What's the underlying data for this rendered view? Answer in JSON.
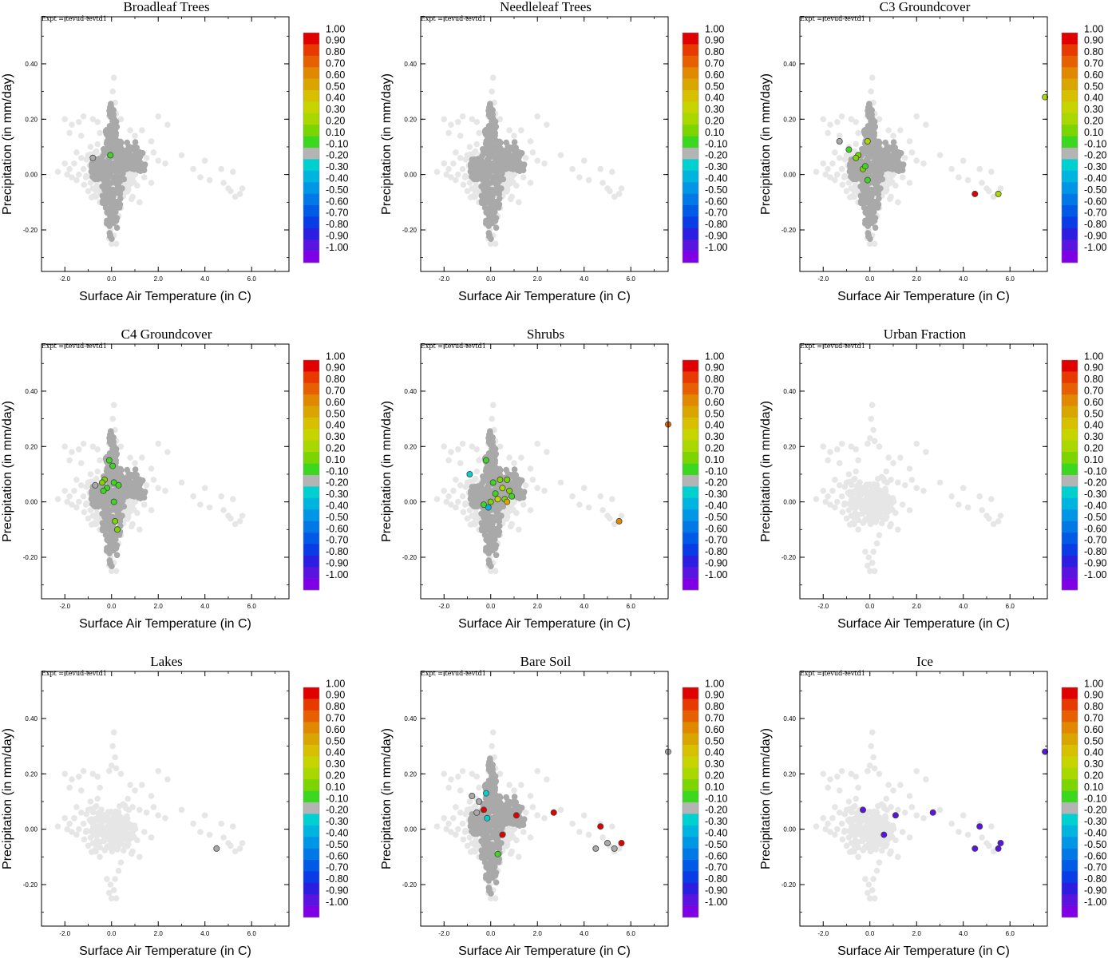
{
  "common": {
    "expt_label": "Expt = tevud-tevtd1",
    "xlabel": "Surface Air Temperature (in C)",
    "ylabel": "Precipitation (in mm/day)",
    "xlim": [
      -3.0,
      7.6
    ],
    "ylim": [
      -0.35,
      0.57
    ],
    "xticks": [
      "-2.0",
      "0.0",
      "2.0",
      "4.0",
      "6.0"
    ],
    "yticks": [
      "-0.20",
      "0.00",
      "0.20",
      "0.40"
    ],
    "colorbar": {
      "labels": [
        "1.00",
        "0.90",
        "0.80",
        "0.70",
        "0.60",
        "0.50",
        "0.40",
        "0.30",
        "0.20",
        "0.10",
        "-0.10",
        "-0.20",
        "-0.30",
        "-0.40",
        "-0.50",
        "-0.60",
        "-0.70",
        "-0.80",
        "-0.90",
        "-1.00"
      ],
      "colors": [
        "#e00000",
        "#e63a00",
        "#e65f00",
        "#e08800",
        "#d9a600",
        "#d6c000",
        "#c6d400",
        "#a8d800",
        "#7cd400",
        "#3cd820",
        "#b4b4b4",
        "#00d0d0",
        "#00b4e0",
        "#0096e6",
        "#0078e6",
        "#005ae6",
        "#0a3ce6",
        "#2c1ee0",
        "#5a14e0",
        "#8000e6"
      ]
    },
    "base_colors": {
      "light": "#e6e6e6",
      "dark": "#a9a9a9"
    },
    "background_points": [
      [
        -2.0,
        0.2
      ],
      [
        -1.7,
        0.18
      ],
      [
        -1.4,
        0.19
      ],
      [
        -1.2,
        0.21
      ],
      [
        -0.8,
        0.2
      ],
      [
        -0.6,
        0.19
      ],
      [
        -1.8,
        0.15
      ],
      [
        -1.3,
        0.14
      ],
      [
        -0.5,
        0.15
      ],
      [
        -2.3,
        0.01
      ],
      [
        -2.0,
        0.04
      ],
      [
        -1.8,
        0.02
      ],
      [
        -1.6,
        0.04
      ],
      [
        -1.5,
        0.08
      ],
      [
        -1.3,
        0.06
      ],
      [
        -1.2,
        0.02
      ],
      [
        -1.0,
        0.07
      ],
      [
        -0.9,
        0.1
      ],
      [
        -0.8,
        0.03
      ],
      [
        -0.7,
        0.08
      ],
      [
        -0.6,
        0.11
      ],
      [
        -1.9,
        0.0
      ],
      [
        -1.7,
        -0.01
      ],
      [
        -1.5,
        -0.02
      ],
      [
        -1.4,
        0.0
      ],
      [
        -1.1,
        -0.01
      ],
      [
        -0.9,
        -0.03
      ],
      [
        -0.8,
        -0.05
      ],
      [
        -0.6,
        -0.02
      ],
      [
        -0.7,
        -0.08
      ],
      [
        -0.5,
        -0.1
      ],
      [
        -1.0,
        -0.06
      ],
      [
        -0.3,
        0.05
      ],
      [
        0.3,
        0.06
      ],
      [
        0.5,
        0.09
      ],
      [
        0.7,
        0.11
      ],
      [
        0.9,
        0.08
      ],
      [
        1.2,
        0.07
      ],
      [
        1.5,
        0.06
      ],
      [
        1.8,
        0.08
      ],
      [
        2.0,
        0.05
      ],
      [
        2.3,
        0.04
      ],
      [
        1.0,
        0.14
      ],
      [
        1.3,
        0.16
      ],
      [
        1.7,
        0.12
      ],
      [
        2.0,
        0.21
      ],
      [
        2.4,
        0.18
      ],
      [
        0.8,
        0.16
      ],
      [
        0.4,
        0.2
      ],
      [
        0.5,
        0.0
      ],
      [
        0.8,
        -0.02
      ],
      [
        1.1,
        -0.04
      ],
      [
        1.4,
        -0.01
      ],
      [
        1.7,
        -0.03
      ],
      [
        0.6,
        -0.06
      ],
      [
        0.9,
        -0.08
      ],
      [
        1.2,
        -0.1
      ],
      [
        0.4,
        -0.12
      ],
      [
        0.3,
        -0.15
      ],
      [
        3.0,
        0.07
      ],
      [
        3.5,
        0.02
      ],
      [
        3.8,
        -0.01
      ],
      [
        4.0,
        0.05
      ],
      [
        4.2,
        -0.02
      ],
      [
        4.8,
        -0.03
      ],
      [
        5.1,
        -0.06
      ],
      [
        5.3,
        -0.08
      ],
      [
        5.5,
        -0.07
      ],
      [
        5.6,
        -0.05
      ],
      [
        5.0,
        -0.05
      ],
      [
        4.7,
        0.02
      ],
      [
        5.2,
        0.01
      ],
      [
        0.1,
        0.35
      ],
      [
        0.05,
        0.3
      ],
      [
        0.15,
        0.26
      ],
      [
        0.0,
        0.23
      ],
      [
        -0.1,
        0.21
      ],
      [
        0.2,
        0.22
      ],
      [
        0.0,
        -0.25
      ],
      [
        0.1,
        -0.22
      ],
      [
        -0.1,
        -0.23
      ],
      [
        0.15,
        -0.18
      ],
      [
        -0.05,
        -0.2
      ],
      [
        0.2,
        -0.25
      ],
      [
        -0.2,
        -0.18
      ]
    ],
    "core_columns": [
      {
        "x": -0.3,
        "y0": -0.12,
        "y1": 0.1
      },
      {
        "x": -0.15,
        "y0": -0.18,
        "y1": 0.17
      },
      {
        "x": 0.0,
        "y0": -0.24,
        "y1": 0.26
      },
      {
        "x": 0.15,
        "y0": -0.2,
        "y1": 0.2
      },
      {
        "x": 0.3,
        "y0": -0.12,
        "y1": 0.12
      },
      {
        "x": 0.45,
        "y0": -0.08,
        "y1": 0.09
      }
    ],
    "core_clusters": [
      [
        0.7,
        0.07,
        0.5,
        0.05
      ],
      [
        1.0,
        0.05,
        0.45,
        0.04
      ],
      [
        -0.6,
        0.02,
        0.3,
        0.04
      ]
    ]
  },
  "chart_data": [
    {
      "type": "scatter",
      "title": "Broadleaf Trees",
      "core": true,
      "highlights": [
        [
          -0.05,
          0.07,
          "#3cd820"
        ],
        [
          -0.8,
          0.06,
          "#a9a9a9"
        ]
      ]
    },
    {
      "type": "scatter",
      "title": "Needleleaf Trees",
      "core": true,
      "highlights": []
    },
    {
      "type": "scatter",
      "title": "C3 Groundcover",
      "core": true,
      "highlights": [
        [
          -0.9,
          0.09,
          "#3cd820"
        ],
        [
          -0.5,
          0.07,
          "#7cd400"
        ],
        [
          -0.6,
          0.06,
          "#7cd400"
        ],
        [
          -0.3,
          0.02,
          "#7cd400"
        ],
        [
          -0.1,
          0.12,
          "#a8d800"
        ],
        [
          -0.1,
          -0.02,
          "#3cd820"
        ],
        [
          -0.2,
          0.03,
          "#3cd820"
        ],
        [
          -1.3,
          0.12,
          "#a9a9a9"
        ],
        [
          4.5,
          -0.07,
          "#e00000"
        ],
        [
          5.5,
          -0.07,
          "#a8d800"
        ],
        [
          7.5,
          0.28,
          "#a8d800"
        ]
      ]
    },
    {
      "type": "scatter",
      "title": "C4 Groundcover",
      "core": true,
      "highlights": [
        [
          -0.1,
          0.15,
          "#3cd820"
        ],
        [
          0.05,
          0.13,
          "#3cd820"
        ],
        [
          -0.3,
          0.08,
          "#7cd400"
        ],
        [
          -0.4,
          0.07,
          "#7cd400"
        ],
        [
          0.1,
          0.07,
          "#3cd820"
        ],
        [
          0.3,
          0.06,
          "#3cd820"
        ],
        [
          -0.2,
          0.05,
          "#3cd820"
        ],
        [
          -0.35,
          0.04,
          "#3cd820"
        ],
        [
          0.1,
          0.0,
          "#3cd820"
        ],
        [
          0.15,
          -0.07,
          "#7cd400"
        ],
        [
          0.25,
          -0.1,
          "#7cd400"
        ],
        [
          -0.7,
          0.06,
          "#a9a9a9"
        ]
      ]
    },
    {
      "type": "scatter",
      "title": "Shrubs",
      "core": true,
      "highlights": [
        [
          -0.2,
          0.15,
          "#3cd820"
        ],
        [
          -0.9,
          0.1,
          "#00d0d0"
        ],
        [
          0.1,
          0.07,
          "#3cd820"
        ],
        [
          0.4,
          0.08,
          "#7cd400"
        ],
        [
          0.7,
          0.08,
          "#7cd400"
        ],
        [
          0.5,
          0.05,
          "#a8d800"
        ],
        [
          0.8,
          0.04,
          "#7cd400"
        ],
        [
          0.9,
          0.02,
          "#3cd820"
        ],
        [
          0.2,
          0.03,
          "#3cd820"
        ],
        [
          0.6,
          0.01,
          "#7cd400"
        ],
        [
          0.0,
          0.0,
          "#7cd400"
        ],
        [
          -0.3,
          -0.01,
          "#3cd820"
        ],
        [
          0.3,
          0.01,
          "#c6d400"
        ],
        [
          0.7,
          0.0,
          "#d9a600"
        ],
        [
          -0.1,
          -0.02,
          "#00b4e0"
        ],
        [
          5.5,
          -0.07,
          "#e08800"
        ],
        [
          7.6,
          0.28,
          "#e65f00"
        ]
      ]
    },
    {
      "type": "scatter",
      "title": "Urban Fraction",
      "core": false,
      "highlights": []
    },
    {
      "type": "scatter",
      "title": "Lakes",
      "core": false,
      "highlights": [
        [
          4.5,
          -0.07,
          "#a9a9a9"
        ]
      ]
    },
    {
      "type": "scatter",
      "title": "Bare Soil",
      "core": true,
      "highlights": [
        [
          -0.3,
          0.07,
          "#e00000"
        ],
        [
          -0.2,
          0.13,
          "#00d0d0"
        ],
        [
          -0.15,
          0.04,
          "#00d0d0"
        ],
        [
          0.5,
          -0.02,
          "#e00000"
        ],
        [
          1.1,
          0.05,
          "#e00000"
        ],
        [
          2.7,
          0.06,
          "#e00000"
        ],
        [
          4.7,
          0.01,
          "#e00000"
        ],
        [
          5.6,
          -0.05,
          "#e00000"
        ],
        [
          0.3,
          -0.09,
          "#3cd820"
        ],
        [
          -0.8,
          0.12,
          "#a9a9a9"
        ],
        [
          -0.6,
          0.06,
          "#a9a9a9"
        ],
        [
          -0.5,
          0.1,
          "#a9a9a9"
        ],
        [
          4.5,
          -0.07,
          "#a9a9a9"
        ],
        [
          5.3,
          -0.07,
          "#a9a9a9"
        ],
        [
          5.0,
          -0.05,
          "#a9a9a9"
        ],
        [
          7.6,
          0.28,
          "#a9a9a9"
        ]
      ]
    },
    {
      "type": "scatter",
      "title": "Ice",
      "core": false,
      "highlights": [
        [
          -0.3,
          0.07,
          "#5a14e0"
        ],
        [
          1.1,
          0.05,
          "#5a14e0"
        ],
        [
          2.7,
          0.06,
          "#5a14e0"
        ],
        [
          0.6,
          -0.02,
          "#5a14e0"
        ],
        [
          4.7,
          0.01,
          "#5a14e0"
        ],
        [
          4.5,
          -0.07,
          "#5a14e0"
        ],
        [
          5.6,
          -0.05,
          "#5a14e0"
        ],
        [
          5.5,
          -0.07,
          "#5a14e0"
        ],
        [
          7.5,
          0.28,
          "#5a14e0"
        ]
      ]
    }
  ]
}
